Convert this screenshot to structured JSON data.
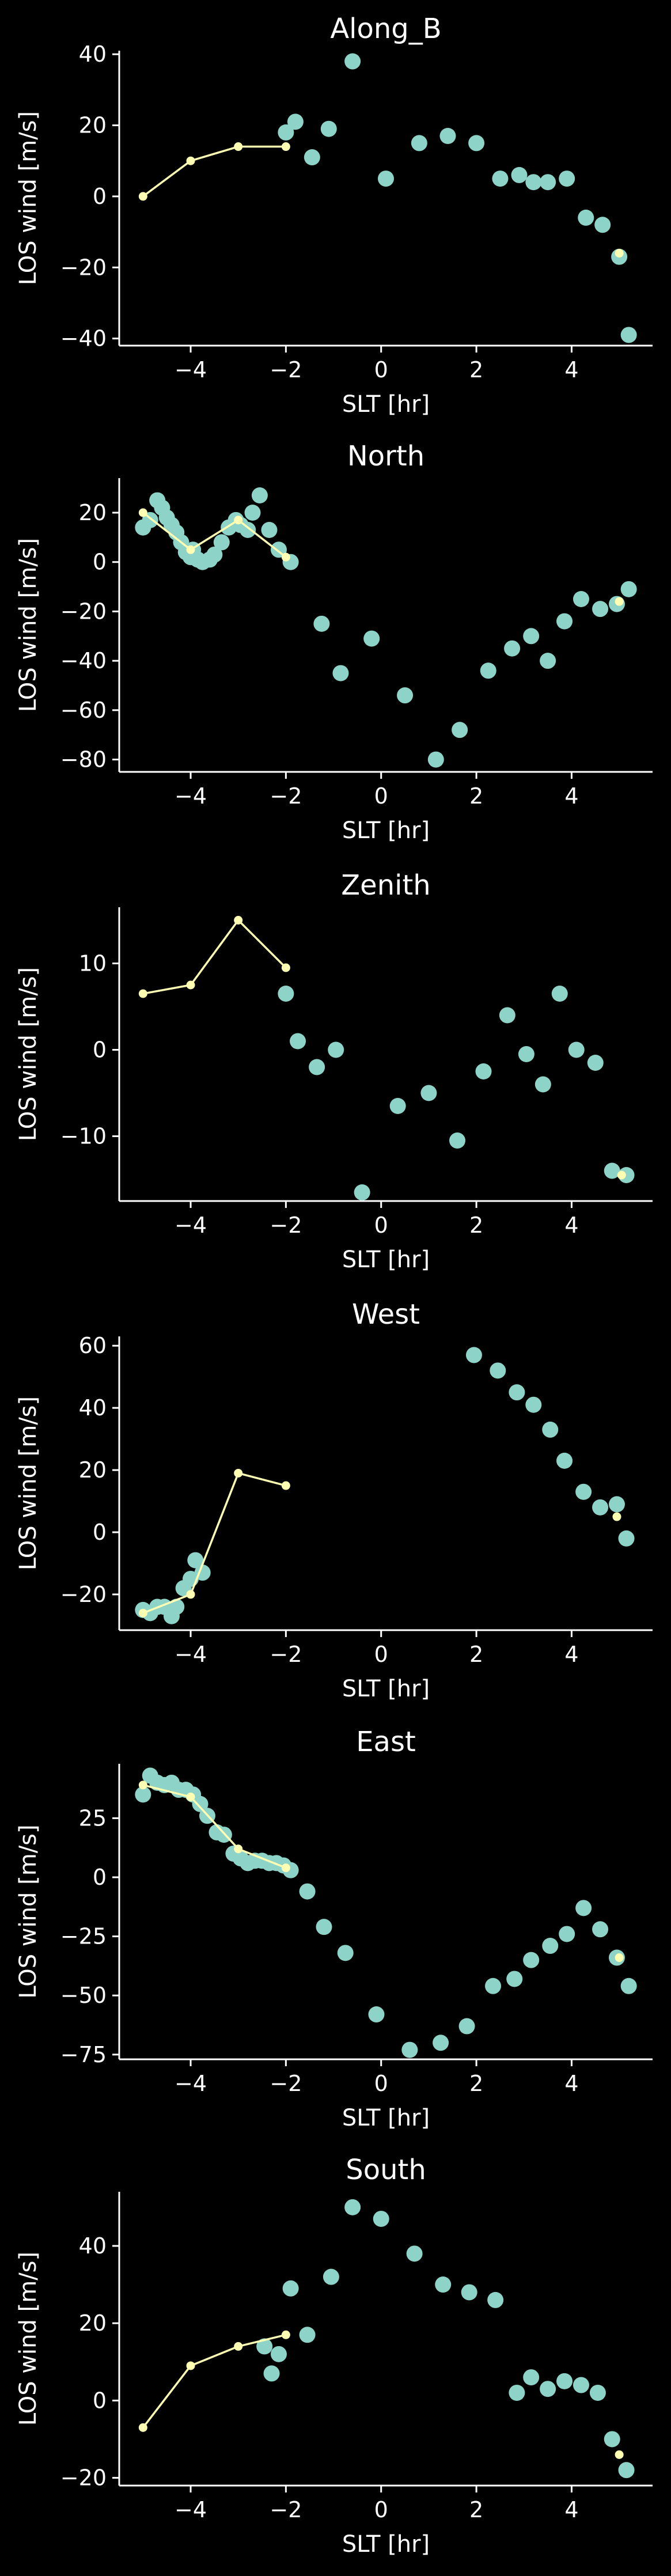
{
  "chart_data": [
    {
      "type": "scatter",
      "title": "Along_B",
      "xlabel": "SLT [hr]",
      "ylabel": "LOS wind [m/s]",
      "xlim": [
        -5.5,
        5.7
      ],
      "ylim": [
        -42,
        41
      ],
      "xticks": [
        -4,
        -2,
        0,
        2,
        4
      ],
      "yticks": [
        -40,
        -20,
        0,
        20,
        40
      ],
      "xtick_labels": [
        "−4",
        "−2",
        "0",
        "2",
        "4"
      ],
      "ytick_labels": [
        "−40",
        "−20",
        "0",
        "20",
        "40"
      ],
      "series": [
        {
          "kind": "scatter",
          "color": "#8dd3c7",
          "x": [
            -2.0,
            -1.8,
            -1.45,
            -1.1,
            -0.6,
            0.1,
            0.8,
            1.4,
            2.0,
            2.5,
            2.9,
            3.2,
            3.5,
            3.9,
            4.3,
            4.65,
            5.0,
            5.2
          ],
          "y": [
            18,
            21,
            11,
            19,
            38,
            5,
            15,
            17,
            15,
            5,
            6,
            4,
            4,
            5,
            -6,
            -8,
            -17,
            -39
          ]
        },
        {
          "kind": "line",
          "color": "#ffffb3",
          "x": [
            -5,
            -4,
            -3,
            -2
          ],
          "y": [
            0,
            10,
            14,
            14
          ]
        },
        {
          "kind": "marker",
          "color": "#ffffb3",
          "x": [
            5.0
          ],
          "y": [
            -16
          ]
        }
      ]
    },
    {
      "type": "scatter",
      "title": "North",
      "xlabel": "SLT [hr]",
      "ylabel": "LOS wind [m/s]",
      "xlim": [
        -5.5,
        5.7
      ],
      "ylim": [
        -85,
        34
      ],
      "xticks": [
        -4,
        -2,
        0,
        2,
        4
      ],
      "yticks": [
        -80,
        -60,
        -40,
        -20,
        0,
        20
      ],
      "xtick_labels": [
        "−4",
        "−2",
        "0",
        "2",
        "4"
      ],
      "ytick_labels": [
        "−80",
        "−60",
        "−40",
        "−20",
        "0",
        "20"
      ],
      "series": [
        {
          "kind": "scatter",
          "color": "#8dd3c7",
          "x": [
            -5.0,
            -4.85,
            -4.7,
            -4.6,
            -4.5,
            -4.4,
            -4.3,
            -4.2,
            -4.1,
            -4.0,
            -3.95,
            -3.85,
            -3.75,
            -3.6,
            -3.5,
            -3.35,
            -3.2,
            -3.05,
            -2.95,
            -2.8,
            -2.7,
            -2.55,
            -2.35,
            -2.15,
            -1.9,
            -1.25,
            -0.85,
            -0.2,
            0.5,
            1.15,
            1.65,
            2.25,
            2.75,
            3.15,
            3.5,
            3.85,
            4.2,
            4.6,
            4.95,
            5.2
          ],
          "y": [
            14,
            17,
            25,
            22,
            18,
            15,
            12,
            8,
            4,
            2,
            5,
            1,
            0,
            1,
            3,
            8,
            14,
            17,
            15,
            13,
            20,
            27,
            13,
            5,
            0,
            -25,
            -45,
            -31,
            -54,
            -80,
            -68,
            -44,
            -35,
            -30,
            -40,
            -24,
            -15,
            -19,
            -17,
            -11
          ]
        },
        {
          "kind": "line",
          "color": "#ffffb3",
          "x": [
            -5,
            -4,
            -3,
            -2
          ],
          "y": [
            20,
            5,
            17,
            2
          ]
        },
        {
          "kind": "marker",
          "color": "#ffffb3",
          "x": [
            5.0
          ],
          "y": [
            -16
          ]
        }
      ]
    },
    {
      "type": "scatter",
      "title": "Zenith",
      "xlabel": "SLT [hr]",
      "ylabel": "LOS wind [m/s]",
      "xlim": [
        -5.5,
        5.7
      ],
      "ylim": [
        -17.5,
        16.5
      ],
      "xticks": [
        -4,
        -2,
        0,
        2,
        4
      ],
      "yticks": [
        -10,
        0,
        10
      ],
      "xtick_labels": [
        "−4",
        "−2",
        "0",
        "2",
        "4"
      ],
      "ytick_labels": [
        "−10",
        "0",
        "10"
      ],
      "series": [
        {
          "kind": "scatter",
          "color": "#8dd3c7",
          "x": [
            -2.0,
            -1.75,
            -1.35,
            -0.95,
            -0.4,
            0.35,
            1.0,
            1.6,
            2.15,
            2.65,
            3.05,
            3.4,
            3.75,
            4.1,
            4.5,
            4.85,
            5.15
          ],
          "y": [
            6.5,
            1,
            -2,
            0,
            -16.5,
            -6.5,
            -5,
            -10.5,
            -2.5,
            4,
            -0.5,
            -4,
            6.5,
            0,
            -1.5,
            -14,
            -14.5
          ]
        },
        {
          "kind": "line",
          "color": "#ffffb3",
          "x": [
            -5,
            -4,
            -3,
            -2
          ],
          "y": [
            6.5,
            7.5,
            15,
            9.5
          ]
        },
        {
          "kind": "marker",
          "color": "#ffffb3",
          "x": [
            5.05
          ],
          "y": [
            -14.5
          ]
        }
      ]
    },
    {
      "type": "scatter",
      "title": "West",
      "xlabel": "SLT [hr]",
      "ylabel": "LOS wind [m/s]",
      "xlim": [
        -5.5,
        5.7
      ],
      "ylim": [
        -31.5,
        63
      ],
      "xticks": [
        -4,
        -2,
        0,
        2,
        4
      ],
      "yticks": [
        -20,
        0,
        20,
        40,
        60
      ],
      "xtick_labels": [
        "−4",
        "−2",
        "0",
        "2",
        "4"
      ],
      "ytick_labels": [
        "−20",
        "0",
        "20",
        "40",
        "60"
      ],
      "series": [
        {
          "kind": "scatter",
          "color": "#8dd3c7",
          "x": [
            -5.0,
            -4.85,
            -4.7,
            -4.55,
            -4.4,
            -4.3,
            -4.15,
            -4.0,
            -3.9,
            -3.75,
            1.95,
            2.45,
            2.85,
            3.2,
            3.55,
            3.85,
            4.25,
            4.6,
            4.95,
            5.15
          ],
          "y": [
            -25,
            -26,
            -24,
            -24,
            -27,
            -24,
            -18,
            -15,
            -9,
            -13,
            57,
            52,
            45,
            41,
            33,
            23,
            13,
            8,
            9,
            -2
          ]
        },
        {
          "kind": "line",
          "color": "#ffffb3",
          "x": [
            -5,
            -4,
            -3,
            -2
          ],
          "y": [
            -26,
            -20,
            19,
            15
          ]
        },
        {
          "kind": "marker",
          "color": "#ffffb3",
          "x": [
            4.95
          ],
          "y": [
            5
          ]
        }
      ]
    },
    {
      "type": "scatter",
      "title": "East",
      "xlabel": "SLT [hr]",
      "ylabel": "LOS wind [m/s]",
      "xlim": [
        -5.5,
        5.7
      ],
      "ylim": [
        -77,
        48
      ],
      "xticks": [
        -4,
        -2,
        0,
        2,
        4
      ],
      "yticks": [
        -75,
        -50,
        -25,
        0,
        25
      ],
      "xtick_labels": [
        "−4",
        "−2",
        "0",
        "2",
        "4"
      ],
      "ytick_labels": [
        "−75",
        "−50",
        "−25",
        "0",
        "25"
      ],
      "series": [
        {
          "kind": "scatter",
          "color": "#8dd3c7",
          "x": [
            -5.0,
            -4.85,
            -4.7,
            -4.55,
            -4.4,
            -4.25,
            -4.1,
            -3.95,
            -3.8,
            -3.65,
            -3.45,
            -3.3,
            -3.1,
            -2.95,
            -2.8,
            -2.65,
            -2.5,
            -2.35,
            -2.2,
            -2.05,
            -1.9,
            -1.55,
            -1.2,
            -0.75,
            -0.1,
            0.6,
            1.25,
            1.8,
            2.35,
            2.8,
            3.15,
            3.55,
            3.9,
            4.25,
            4.6,
            4.95,
            5.2
          ],
          "y": [
            35,
            43,
            40,
            39,
            40,
            37,
            37,
            35,
            31,
            26,
            19,
            18,
            10,
            8,
            6,
            7,
            7,
            6,
            6,
            5,
            3,
            -6,
            -21,
            -32,
            -58,
            -73,
            -70,
            -63,
            -46,
            -43,
            -35,
            -29,
            -24,
            -13,
            -22,
            -34,
            -46
          ]
        },
        {
          "kind": "line",
          "color": "#ffffb3",
          "x": [
            -5,
            -4,
            -3,
            -2
          ],
          "y": [
            39,
            34,
            12,
            4
          ]
        },
        {
          "kind": "marker",
          "color": "#ffffb3",
          "x": [
            5.0
          ],
          "y": [
            -34
          ]
        }
      ]
    },
    {
      "type": "scatter",
      "title": "South",
      "xlabel": "SLT [hr]",
      "ylabel": "LOS wind [m/s]",
      "xlim": [
        -5.5,
        5.7
      ],
      "ylim": [
        -22,
        54
      ],
      "xticks": [
        -4,
        -2,
        0,
        2,
        4
      ],
      "yticks": [
        -20,
        0,
        20,
        40
      ],
      "xtick_labels": [
        "−4",
        "−2",
        "0",
        "2",
        "4"
      ],
      "ytick_labels": [
        "−20",
        "0",
        "20",
        "40"
      ],
      "series": [
        {
          "kind": "scatter",
          "color": "#8dd3c7",
          "x": [
            -2.45,
            -2.3,
            -2.15,
            -1.9,
            -1.55,
            -1.05,
            -0.6,
            0.0,
            0.7,
            1.3,
            1.85,
            2.4,
            2.85,
            3.15,
            3.5,
            3.85,
            4.2,
            4.55,
            4.85,
            5.15
          ],
          "y": [
            14,
            7,
            12,
            29,
            17,
            32,
            50,
            47,
            38,
            30,
            28,
            26,
            2,
            6,
            3,
            5,
            4,
            2,
            -10,
            -18
          ]
        },
        {
          "kind": "line",
          "color": "#ffffb3",
          "x": [
            -5,
            -4,
            -3,
            -2
          ],
          "y": [
            -7,
            9,
            14,
            17
          ]
        },
        {
          "kind": "marker",
          "color": "#ffffb3",
          "x": [
            5.0
          ],
          "y": [
            -14
          ]
        }
      ]
    }
  ]
}
